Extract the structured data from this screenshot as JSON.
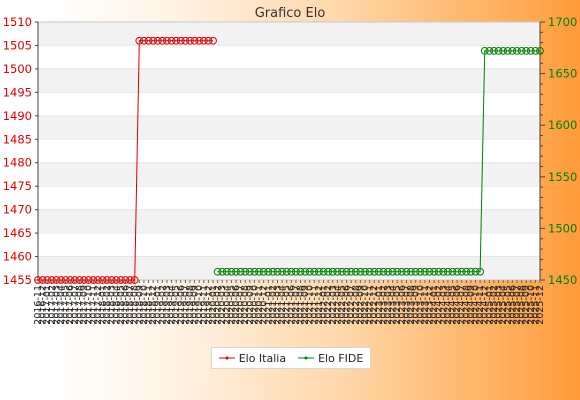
{
  "chart_data": {
    "type": "line",
    "title": "Grafico Elo",
    "left_axis": {
      "ylim": [
        1455,
        1510
      ],
      "ticks": [
        1455,
        1460,
        1465,
        1470,
        1475,
        1480,
        1485,
        1490,
        1495,
        1500,
        1505,
        1510
      ],
      "color": "#e00000"
    },
    "right_axis": {
      "ylim": [
        1450,
        1700
      ],
      "ticks": [
        1450,
        1500,
        1550,
        1600,
        1650,
        1700
      ],
      "color": "#008000"
    },
    "grid": "horizontal bands",
    "legend_position": "bottom",
    "x_labels": [
      "2016-11",
      "2016-12",
      "2017-01",
      "2017-02",
      "2017-03",
      "2017-04",
      "2017-05",
      "2017-06",
      "2017-07",
      "2017-08",
      "2017-09",
      "2017-10",
      "2017-11",
      "2017-12",
      "2018-01",
      "2018-02",
      "2018-03",
      "2018-04",
      "2018-05",
      "2018-06",
      "2018-07",
      "2018-08",
      "2018-09",
      "2018-10",
      "2018-11",
      "2018-12",
      "2019-01",
      "2019-02",
      "2019-03",
      "2019-04",
      "2019-05",
      "2019-06",
      "2019-07",
      "2019-08",
      "2019-09",
      "2019-10",
      "2019-11",
      "2019-12",
      "2020-01",
      "2020-02",
      "2020-03",
      "2020-04",
      "2020-05",
      "2020-06",
      "2020-07",
      "2020-08",
      "2020-09",
      "2020-10",
      "2020-11",
      "2020-12",
      "2021-01",
      "2021-02",
      "2021-03",
      "2021-04",
      "2021-05",
      "2021-06",
      "2021-07",
      "2021-08",
      "2021-09",
      "2021-10",
      "2021-11",
      "2021-12",
      "2022-01",
      "2022-02",
      "2022-03",
      "2022-04",
      "2022-05",
      "2022-06",
      "2022-07",
      "2022-08",
      "2022-09",
      "2022-10",
      "2022-11",
      "2022-12",
      "2023-01",
      "2023-02",
      "2023-03",
      "2023-04",
      "2023-05",
      "2023-06",
      "2023-07",
      "2023-08",
      "2023-09",
      "2023-10",
      "2023-11",
      "2023-12",
      "2024-01",
      "2024-02",
      "2024-03",
      "2024-04",
      "2024-05",
      "2024-06",
      "2024-07",
      "2024-08",
      "2024-09",
      "2024-10",
      "2024-11",
      "2024-12",
      "2025-01",
      "2025-02",
      "2025-03",
      "2025-04",
      "2025-05",
      "2025-06",
      "2025-07",
      "2025-08",
      "2025-09",
      "2025-10",
      "2025-11",
      "2025-12"
    ],
    "series": [
      {
        "name": "Elo Italia",
        "axis": "left",
        "color": "#e00000",
        "points": [
          [
            "2016-11",
            1455
          ],
          [
            "2016-12",
            1455
          ],
          [
            "2017-01",
            1455
          ],
          [
            "2017-02",
            1455
          ],
          [
            "2017-03",
            1455
          ],
          [
            "2017-04",
            1455
          ],
          [
            "2017-05",
            1455
          ],
          [
            "2017-06",
            1455
          ],
          [
            "2017-07",
            1455
          ],
          [
            "2017-08",
            1455
          ],
          [
            "2017-09",
            1455
          ],
          [
            "2017-10",
            1455
          ],
          [
            "2017-11",
            1455
          ],
          [
            "2017-12",
            1455
          ],
          [
            "2018-01",
            1455
          ],
          [
            "2018-02",
            1455
          ],
          [
            "2018-03",
            1455
          ],
          [
            "2018-04",
            1455
          ],
          [
            "2018-05",
            1455
          ],
          [
            "2018-06",
            1455
          ],
          [
            "2018-07",
            1455
          ],
          [
            "2018-08",
            1455
          ],
          [
            "2018-09",
            1506
          ],
          [
            "2018-10",
            1506
          ],
          [
            "2018-11",
            1506
          ],
          [
            "2018-12",
            1506
          ],
          [
            "2019-01",
            1506
          ],
          [
            "2019-02",
            1506
          ],
          [
            "2019-03",
            1506
          ],
          [
            "2019-04",
            1506
          ],
          [
            "2019-05",
            1506
          ],
          [
            "2019-06",
            1506
          ],
          [
            "2019-07",
            1506
          ],
          [
            "2019-08",
            1506
          ],
          [
            "2019-09",
            1506
          ],
          [
            "2019-10",
            1506
          ],
          [
            "2019-11",
            1506
          ],
          [
            "2019-12",
            1506
          ],
          [
            "2020-01",
            1506
          ]
        ]
      },
      {
        "name": "Elo FIDE",
        "axis": "right",
        "color": "#008000",
        "points": [
          [
            "2020-02",
            1458
          ],
          [
            "2020-03",
            1458
          ],
          [
            "2020-04",
            1458
          ],
          [
            "2020-05",
            1458
          ],
          [
            "2020-06",
            1458
          ],
          [
            "2020-07",
            1458
          ],
          [
            "2020-08",
            1458
          ],
          [
            "2020-09",
            1458
          ],
          [
            "2020-10",
            1458
          ],
          [
            "2020-11",
            1458
          ],
          [
            "2020-12",
            1458
          ],
          [
            "2021-01",
            1458
          ],
          [
            "2021-02",
            1458
          ],
          [
            "2021-03",
            1458
          ],
          [
            "2021-04",
            1458
          ],
          [
            "2021-05",
            1458
          ],
          [
            "2021-06",
            1458
          ],
          [
            "2021-07",
            1458
          ],
          [
            "2021-08",
            1458
          ],
          [
            "2021-09",
            1458
          ],
          [
            "2021-10",
            1458
          ],
          [
            "2021-11",
            1458
          ],
          [
            "2021-12",
            1458
          ],
          [
            "2022-01",
            1458
          ],
          [
            "2022-02",
            1458
          ],
          [
            "2022-03",
            1458
          ],
          [
            "2022-04",
            1458
          ],
          [
            "2022-05",
            1458
          ],
          [
            "2022-06",
            1458
          ],
          [
            "2022-07",
            1458
          ],
          [
            "2022-08",
            1458
          ],
          [
            "2022-09",
            1458
          ],
          [
            "2022-10",
            1458
          ],
          [
            "2022-11",
            1458
          ],
          [
            "2022-12",
            1458
          ],
          [
            "2023-01",
            1458
          ],
          [
            "2023-02",
            1458
          ],
          [
            "2023-03",
            1458
          ],
          [
            "2023-04",
            1458
          ],
          [
            "2023-05",
            1458
          ],
          [
            "2023-06",
            1458
          ],
          [
            "2023-07",
            1458
          ],
          [
            "2023-08",
            1458
          ],
          [
            "2023-09",
            1458
          ],
          [
            "2023-10",
            1458
          ],
          [
            "2023-11",
            1458
          ],
          [
            "2023-12",
            1458
          ],
          [
            "2024-01",
            1458
          ],
          [
            "2024-02",
            1458
          ],
          [
            "2024-03",
            1458
          ],
          [
            "2024-04",
            1458
          ],
          [
            "2024-05",
            1458
          ],
          [
            "2024-06",
            1458
          ],
          [
            "2024-07",
            1458
          ],
          [
            "2024-08",
            1458
          ],
          [
            "2024-09",
            1458
          ],
          [
            "2024-10",
            1458
          ],
          [
            "2024-11",
            1458
          ],
          [
            "2024-12",
            1672
          ],
          [
            "2025-01",
            1672
          ],
          [
            "2025-02",
            1672
          ],
          [
            "2025-03",
            1672
          ],
          [
            "2025-04",
            1672
          ],
          [
            "2025-05",
            1672
          ],
          [
            "2025-06",
            1672
          ],
          [
            "2025-07",
            1672
          ],
          [
            "2025-08",
            1672
          ],
          [
            "2025-09",
            1672
          ],
          [
            "2025-10",
            1672
          ],
          [
            "2025-11",
            1672
          ],
          [
            "2025-12",
            1672
          ]
        ]
      }
    ]
  }
}
